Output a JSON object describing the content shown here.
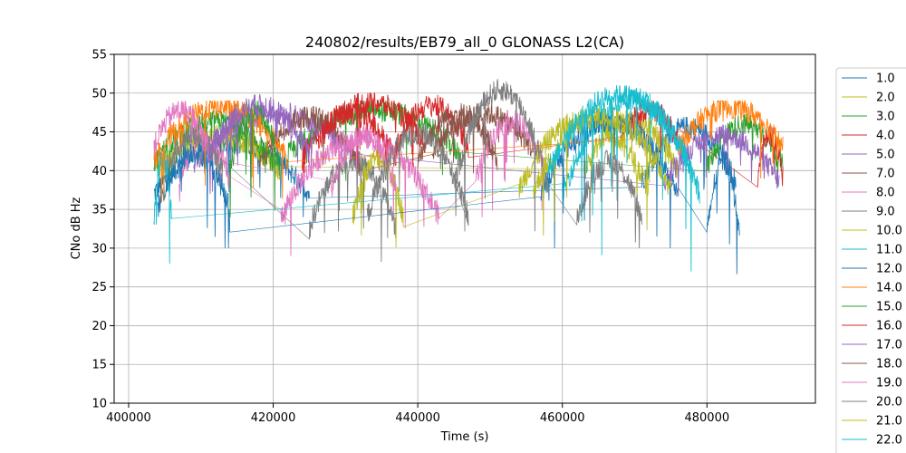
{
  "chart_data": {
    "type": "line",
    "title": "240802/results/EB79_all_0 GLONASS L2(CA)",
    "xlabel": "Time (s)",
    "ylabel": "CNo dB Hz",
    "xlim": [
      398000,
      495000
    ],
    "ylim": [
      10,
      55
    ],
    "xticks": [
      400000,
      420000,
      440000,
      460000,
      480000
    ],
    "xtick_labels": [
      "400000",
      "420000",
      "440000",
      "460000",
      "480000"
    ],
    "yticks": [
      10,
      15,
      20,
      25,
      30,
      35,
      40,
      45,
      50,
      55
    ],
    "ytick_labels": [
      "10",
      "15",
      "20",
      "25",
      "30",
      "35",
      "40",
      "45",
      "50",
      "55"
    ],
    "grid": true,
    "legend_position": "right, outside plot",
    "series": [
      {
        "name": "1.0",
        "color": "#1f77b4",
        "segments": [
          {
            "start": 403500,
            "end": 425000,
            "min": 34,
            "max": 46,
            "base": 40
          },
          {
            "start": 471000,
            "end": 484000,
            "min": 35,
            "max": 48,
            "base": 42
          }
        ]
      },
      {
        "name": "2.0",
        "color": "#bcbd22",
        "segments": [
          {
            "start": 404000,
            "end": 421000,
            "min": 38,
            "max": 46,
            "base": 42
          },
          {
            "start": 463000,
            "end": 476000,
            "min": 36,
            "max": 48,
            "base": 44
          }
        ]
      },
      {
        "name": "3.0",
        "color": "#2ca02c",
        "segments": [
          {
            "start": 403500,
            "end": 420000,
            "min": 38,
            "max": 48,
            "base": 44
          },
          {
            "start": 422000,
            "end": 446000,
            "min": 38,
            "max": 49,
            "base": 46
          },
          {
            "start": 480000,
            "end": 490500,
            "min": 38,
            "max": 48,
            "base": 43
          }
        ]
      },
      {
        "name": "4.0",
        "color": "#d62728",
        "segments": [
          {
            "start": 424000,
            "end": 437000,
            "min": 38,
            "max": 49,
            "base": 45
          },
          {
            "start": 437000,
            "end": 447000,
            "min": 40,
            "max": 50,
            "base": 46
          },
          {
            "start": 468000,
            "end": 476000,
            "min": 42,
            "max": 49,
            "base": 46
          },
          {
            "start": 487000,
            "end": 490500,
            "min": 37,
            "max": 47,
            "base": 41
          }
        ]
      },
      {
        "name": "5.0",
        "color": "#9467bd",
        "segments": [
          {
            "start": 409000,
            "end": 432000,
            "min": 37,
            "max": 49,
            "base": 45
          },
          {
            "start": 474000,
            "end": 490000,
            "min": 36,
            "max": 47,
            "base": 41
          }
        ]
      },
      {
        "name": "7.0",
        "color": "#8c564b",
        "segments": [
          {
            "start": 418000,
            "end": 432000,
            "min": 37,
            "max": 49,
            "base": 44
          },
          {
            "start": 442000,
            "end": 456000,
            "min": 40,
            "max": 49,
            "base": 45
          }
        ]
      },
      {
        "name": "8.0",
        "color": "#e377c2",
        "segments": [
          {
            "start": 407000,
            "end": 414000,
            "min": 36,
            "max": 46,
            "base": 41
          },
          {
            "start": 421000,
            "end": 443000,
            "min": 28,
            "max": 47,
            "base": 40
          },
          {
            "start": 448000,
            "end": 458000,
            "min": 34,
            "max": 48,
            "base": 44
          }
        ]
      },
      {
        "name": "9.0",
        "color": "#7f7f7f",
        "segments": [
          {
            "start": 405000,
            "end": 413000,
            "min": 38,
            "max": 46,
            "base": 42
          },
          {
            "start": 425000,
            "end": 437000,
            "min": 28,
            "max": 44,
            "base": 37
          }
        ]
      },
      {
        "name": "10.0",
        "color": "#bcbd22",
        "segments": [
          {
            "start": 431000,
            "end": 438000,
            "min": 30,
            "max": 44,
            "base": 38
          },
          {
            "start": 454000,
            "end": 472000,
            "min": 32,
            "max": 49,
            "base": 43
          }
        ]
      },
      {
        "name": "11.0",
        "color": "#17becf",
        "segments": [
          {
            "start": 403500,
            "end": 406000,
            "min": 28,
            "max": 44,
            "base": 38
          },
          {
            "start": 460000,
            "end": 479000,
            "min": 27,
            "max": 51,
            "base": 47
          }
        ]
      },
      {
        "name": "12.0",
        "color": "#1f77b4",
        "segments": [
          {
            "start": 404000,
            "end": 414000,
            "min": 30,
            "max": 44,
            "base": 40
          },
          {
            "start": 457000,
            "end": 476000,
            "min": 30,
            "max": 48,
            "base": 44
          },
          {
            "start": 480000,
            "end": 484500,
            "min": 26,
            "max": 44,
            "base": 37
          }
        ]
      },
      {
        "name": "14.0",
        "color": "#ff7f0e",
        "segments": [
          {
            "start": 403500,
            "end": 422000,
            "min": 36,
            "max": 49,
            "base": 47
          },
          {
            "start": 476000,
            "end": 490500,
            "min": 39,
            "max": 49,
            "base": 47
          }
        ]
      },
      {
        "name": "15.0",
        "color": "#2ca02c",
        "segments": [
          {
            "start": 414000,
            "end": 421000,
            "min": 34,
            "max": 49,
            "base": 46
          }
        ]
      },
      {
        "name": "16.0",
        "color": "#d62728",
        "segments": [
          {
            "start": 426000,
            "end": 441000,
            "min": 40,
            "max": 50,
            "base": 47
          }
        ]
      },
      {
        "name": "17.0",
        "color": "#9467bd",
        "segments": [
          {
            "start": 411000,
            "end": 425000,
            "min": 38,
            "max": 50,
            "base": 46
          }
        ]
      },
      {
        "name": "18.0",
        "color": "#8c564b",
        "segments": [
          {
            "start": 440000,
            "end": 451000,
            "min": 38,
            "max": 49,
            "base": 45
          }
        ]
      },
      {
        "name": "19.0",
        "color": "#e377c2",
        "segments": [
          {
            "start": 403500,
            "end": 411000,
            "min": 40,
            "max": 49,
            "base": 46
          },
          {
            "start": 428000,
            "end": 437000,
            "min": 34,
            "max": 47,
            "base": 41
          }
        ]
      },
      {
        "name": "20.0",
        "color": "#7f7f7f",
        "segments": [
          {
            "start": 433000,
            "end": 447000,
            "min": 28,
            "max": 48,
            "base": 40
          },
          {
            "start": 445000,
            "end": 458000,
            "min": 28,
            "max": 52,
            "base": 48
          },
          {
            "start": 462000,
            "end": 471000,
            "min": 30,
            "max": 44,
            "base": 37
          }
        ]
      },
      {
        "name": "21.0",
        "color": "#bcbd22",
        "segments": [
          {
            "start": 456000,
            "end": 475000,
            "min": 31,
            "max": 49,
            "base": 44
          }
        ]
      },
      {
        "name": "22.0",
        "color": "#17becf",
        "segments": [
          {
            "start": 458000,
            "end": 478000,
            "min": 32,
            "max": 51,
            "base": 48
          }
        ]
      }
    ]
  }
}
